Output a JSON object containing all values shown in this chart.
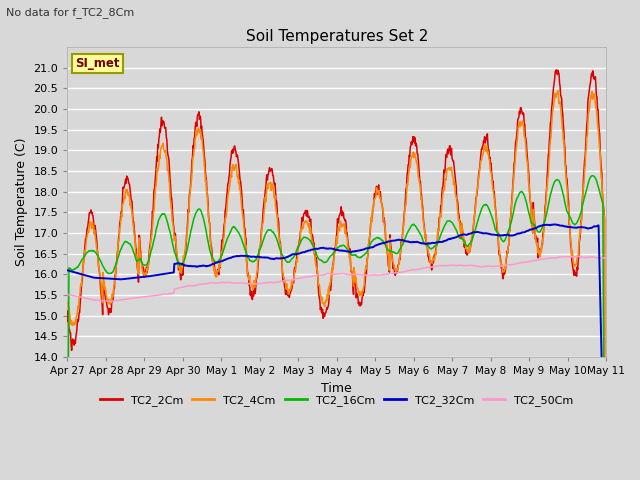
{
  "title": "Soil Temperatures Set 2",
  "subtitle": "No data for f_TC2_8Cm",
  "xlabel": "Time",
  "ylabel": "Soil Temperature (C)",
  "ylim": [
    14.0,
    21.5
  ],
  "yticks": [
    14.0,
    14.5,
    15.0,
    15.5,
    16.0,
    16.5,
    17.0,
    17.5,
    18.0,
    18.5,
    19.0,
    19.5,
    20.0,
    20.5,
    21.0
  ],
  "bg_color": "#d8d8d8",
  "plot_bg_color": "#d8d8d8",
  "grid_color": "#ffffff",
  "annotation_box": "SI_met",
  "annotation_box_bg": "#ffff99",
  "annotation_box_border": "#999900",
  "series_colors": [
    "#dd0000",
    "#ff8800",
    "#00bb00",
    "#0000cc",
    "#ff99cc"
  ],
  "series_labels": [
    "TC2_2Cm",
    "TC2_4Cm",
    "TC2_16Cm",
    "TC2_32Cm",
    "TC2_50Cm"
  ],
  "x_tick_labels": [
    "Apr 27",
    "Apr 28",
    "Apr 29",
    "Apr 30",
    "May 1",
    "May 2",
    "May 3",
    "May 4",
    "May 5",
    "May 6",
    "May 7",
    "May 8",
    "May 9",
    "May 10",
    "May 11"
  ],
  "n_points": 1008,
  "end_day": 14
}
